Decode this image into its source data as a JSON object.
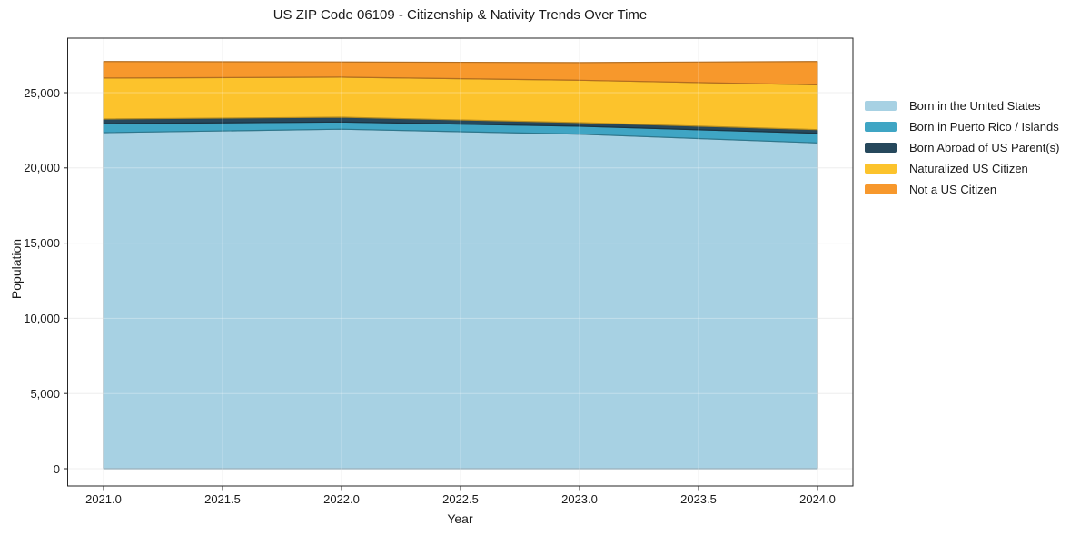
{
  "chart_data": {
    "type": "area",
    "stacked": true,
    "title": "US ZIP Code 06109 - Citizenship & Nativity Trends Over Time",
    "xlabel": "Year",
    "ylabel": "Population",
    "x": [
      2021,
      2022,
      2023,
      2024
    ],
    "series": [
      {
        "name": "Born in the United States",
        "color": "#a7d1e3",
        "values": [
          22340,
          22570,
          22240,
          21660
        ]
      },
      {
        "name": "Born in Puerto Rico / Islands",
        "color": "#3fa5c4",
        "values": [
          600,
          480,
          530,
          640
        ]
      },
      {
        "name": "Born Abroad of US Parent(s)",
        "color": "#26485c",
        "values": [
          310,
          320,
          240,
          240
        ]
      },
      {
        "name": "Naturalized US Citizen",
        "color": "#fcc32c",
        "values": [
          2720,
          2660,
          2820,
          2980
        ]
      },
      {
        "name": "Not a US Citizen",
        "color": "#f7982c",
        "values": [
          1100,
          1010,
          1170,
          1550
        ]
      }
    ],
    "stack_totals": [
      27070,
      27040,
      27000,
      27070
    ],
    "xticks": {
      "values": [
        2021.0,
        2021.5,
        2022.0,
        2022.5,
        2023.0,
        2023.5,
        2024.0
      ],
      "labels": [
        "2021.0",
        "2021.5",
        "2022.0",
        "2022.5",
        "2023.0",
        "2023.5",
        "2024.0"
      ]
    },
    "yticks": {
      "values": [
        0,
        5000,
        10000,
        15000,
        20000,
        25000
      ],
      "labels": [
        "0",
        "5,000",
        "10,000",
        "15,000",
        "20,000",
        "25,000"
      ]
    },
    "grid": true,
    "legend_position": "right-outside",
    "axis_color": "#262626",
    "grid_color": "#e8e8e8",
    "background": "#ffffff"
  }
}
